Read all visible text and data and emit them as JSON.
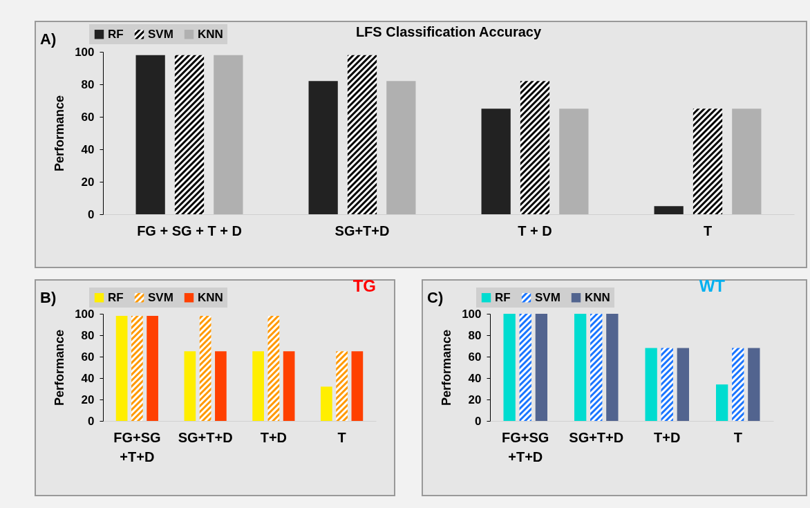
{
  "chart_data": [
    {
      "type": "bar",
      "title": "LFS Classification Accuracy",
      "annotations": [
        "A)"
      ],
      "ylabel": "Performance",
      "categories": [
        "FG + SG + T + D",
        "SG+T+D",
        "T + D",
        "T"
      ],
      "series": [
        {
          "name": "RF",
          "color": "#222222",
          "values": [
            98,
            82,
            65,
            5
          ]
        },
        {
          "name": "SVM",
          "color": "#000000",
          "values": [
            98,
            98,
            82,
            65
          ]
        },
        {
          "name": "KNN",
          "color": "#b0b0b0",
          "values": [
            98,
            82,
            65,
            65
          ]
        }
      ],
      "ylim": [
        0,
        100
      ],
      "yticks": [
        0,
        20,
        40,
        60,
        80,
        100
      ],
      "grid": false,
      "legend": "top left"
    },
    {
      "type": "bar",
      "subtitle": "TG",
      "annotations": [
        "B)"
      ],
      "ylabel": "Performance",
      "categories": [
        "FG+SG\n+T+D",
        "SG+T+D",
        "T+D",
        "T"
      ],
      "series": [
        {
          "name": "RF",
          "color": "#ffee00",
          "values": [
            98,
            65,
            65,
            32
          ]
        },
        {
          "name": "SVM",
          "color": "#ff9900",
          "values": [
            98,
            98,
            98,
            65
          ]
        },
        {
          "name": "KNN",
          "color": "#ff4000",
          "values": [
            98,
            65,
            65,
            65
          ]
        }
      ],
      "ylim": [
        0,
        100
      ],
      "yticks": [
        0,
        20,
        40,
        60,
        80,
        100
      ],
      "grid": false,
      "legend": "top left"
    },
    {
      "type": "bar",
      "subtitle": "WT",
      "annotations": [
        "C)"
      ],
      "ylabel": "Performance",
      "categories": [
        "FG+SG\n+T+D",
        "SG+T+D",
        "T+D",
        "T"
      ],
      "series": [
        {
          "name": "RF",
          "color": "#00dcd0",
          "values": [
            100,
            100,
            68,
            34
          ]
        },
        {
          "name": "SVM",
          "color": "#1a75ff",
          "values": [
            100,
            100,
            68,
            68
          ]
        },
        {
          "name": "KNN",
          "color": "#52648f",
          "values": [
            100,
            100,
            68,
            68
          ]
        }
      ],
      "ylim": [
        0,
        100
      ],
      "yticks": [
        0,
        20,
        40,
        60,
        80,
        100
      ],
      "grid": false,
      "legend": "top left"
    }
  ]
}
